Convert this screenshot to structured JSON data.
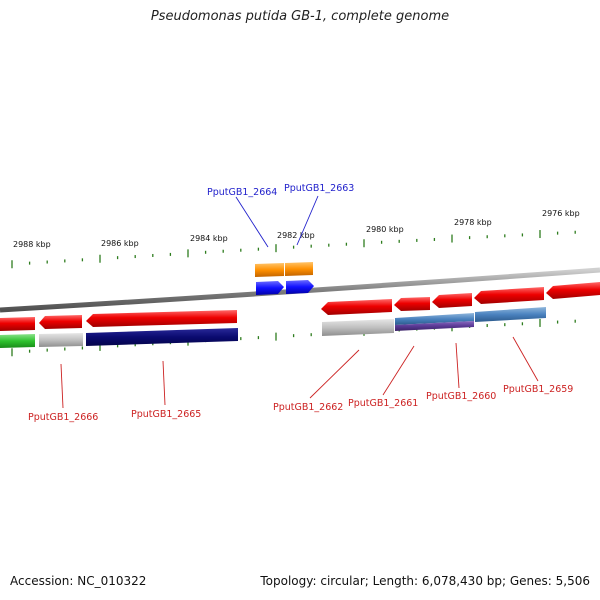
{
  "title": "Pseudomonas putida GB-1, complete genome",
  "footer": {
    "accession": "Accession: NC_010322",
    "summary": "Topology: circular; Length: 6,078,430 bp; Genes: 5,506"
  },
  "colors": {
    "forward_label": "#2222cc",
    "reverse_label": "#cc2222",
    "tick": "#2e7d1e",
    "backbone": "#8a8a8a"
  },
  "scale_labels": [
    "2988 kbp",
    "2986 kbp",
    "2984 kbp",
    "2982 kbp",
    "2980 kbp",
    "2978 kbp",
    "2976 kbp"
  ],
  "gene_labels": {
    "forward": [
      "PputGB1_2664",
      "PputGB1_2663"
    ],
    "reverse": [
      "PputGB1_2666",
      "PputGB1_2665",
      "PputGB1_2662",
      "PputGB1_2661",
      "PputGB1_2660",
      "PputGB1_2659"
    ]
  }
}
